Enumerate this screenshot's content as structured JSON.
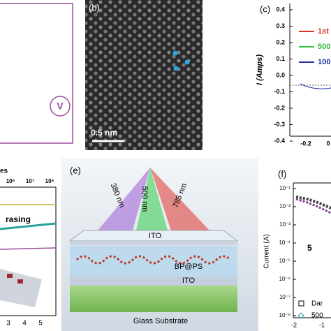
{
  "panels": {
    "a": {
      "symbol": "V"
    },
    "b": {
      "label": "(b)",
      "scale_bar": "0.5 nm"
    },
    "c": {
      "label": "(c)",
      "y_axis": "I (Amps)",
      "yticks": [
        "0.4",
        "0.3",
        "0.2",
        "0.1",
        "0.0",
        "-0.1",
        "-0.2",
        "-0.3",
        "-0.4"
      ],
      "xticks": [
        "-0.2",
        "0"
      ],
      "legend": [
        "1st",
        "500",
        "100"
      ]
    },
    "d": {
      "legend_text": "es",
      "top_ticks": [
        "10⁶",
        "10⁷",
        "10⁸"
      ],
      "annotation": "rasing",
      "xticks": [
        "3",
        "4",
        "5"
      ]
    },
    "e": {
      "label": "(e)",
      "wavelengths": [
        "380 nm",
        "500 nm",
        "785 nm"
      ],
      "layers": [
        "ITO",
        "BP@PS",
        "ITO",
        "Glass Substrate"
      ]
    },
    "f": {
      "label": "(f)",
      "y_axis": "Current (A)",
      "yticks": [
        "10⁻¹",
        "10⁻²",
        "10⁻³",
        "10⁻⁴",
        "10⁻⁵",
        "10⁻⁶",
        "10⁻⁷",
        "10⁻⁸"
      ],
      "xticks": [
        "-2",
        "-1"
      ],
      "annotation": "5",
      "legend": [
        "Dar",
        "500"
      ]
    }
  }
}
